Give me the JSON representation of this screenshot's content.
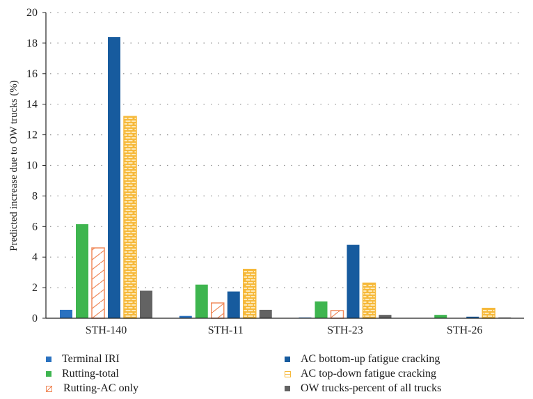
{
  "chart_data": {
    "type": "bar",
    "title": "",
    "xlabel": "",
    "ylabel": "Predicted increase due to OW trucks (%)",
    "ylim": [
      0,
      20
    ],
    "yticks": [
      0,
      2,
      4,
      6,
      8,
      10,
      12,
      14,
      16,
      18,
      20
    ],
    "grid": "horizontal dotted",
    "legend_position": "bottom",
    "categories": [
      "STH-140",
      "STH-11",
      "STH-23",
      "STH-26"
    ],
    "series": [
      {
        "name": "Terminal IRI",
        "color": "#2b72c0",
        "pattern": "solid",
        "values": [
          0.55,
          0.15,
          0.05,
          0.0
        ]
      },
      {
        "name": "Rutting-total",
        "color": "#3eb54f",
        "pattern": "solid",
        "values": [
          6.15,
          2.2,
          1.1,
          0.22
        ]
      },
      {
        "name": "Rutting-AC only",
        "color": "#f08a5b",
        "pattern": "hatch",
        "values": [
          4.6,
          1.0,
          0.5,
          0.0
        ]
      },
      {
        "name": "AC bottom-up fatigue cracking",
        "color": "#175b9e",
        "pattern": "solid",
        "values": [
          18.4,
          1.75,
          4.8,
          0.1
        ]
      },
      {
        "name": "AC top-down fatigue cracking",
        "color": "#f6b93b",
        "pattern": "brick",
        "values": [
          13.2,
          3.2,
          2.3,
          0.65
        ]
      },
      {
        "name": "OW trucks-percent of all trucks",
        "color": "#636363",
        "pattern": "solid",
        "values": [
          1.8,
          0.55,
          0.22,
          0.05
        ]
      }
    ]
  }
}
